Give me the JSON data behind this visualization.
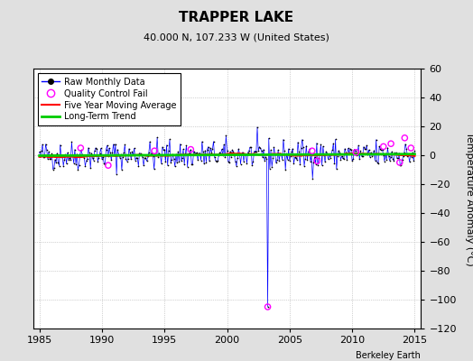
{
  "title": "TRAPPER LAKE",
  "subtitle": "40.000 N, 107.233 W (United States)",
  "ylabel": "Temperature Anomaly (°C)",
  "xlabel_credit": "Berkeley Earth",
  "xlim": [
    1984.5,
    2015.5
  ],
  "ylim": [
    -120,
    60
  ],
  "yticks": [
    -120,
    -100,
    -80,
    -60,
    -40,
    -20,
    0,
    20,
    40,
    60
  ],
  "xticks": [
    1985,
    1990,
    1995,
    2000,
    2005,
    2010,
    2015
  ],
  "bg_color": "#e0e0e0",
  "plot_bg_color": "#ffffff",
  "raw_line_color": "#0000ff",
  "raw_marker_color": "#000000",
  "qc_fail_color": "#ff00ff",
  "moving_avg_color": "#ff0000",
  "trend_color": "#00cc00",
  "outlier_year": 2003.25,
  "outlier_value": -105,
  "seed": 42,
  "start_year": 1985.0,
  "end_year": 2015.0,
  "n_months": 361,
  "qc_fail_years": [
    1988.3,
    1990.5,
    1994.2,
    1997.1,
    2003.25,
    2006.8,
    2007.2,
    2010.3,
    2012.5,
    2013.1,
    2013.8,
    2014.2,
    2014.7
  ],
  "qc_fail_values": [
    5,
    -7,
    3,
    4,
    -105,
    3,
    -4,
    2,
    6,
    8,
    -5,
    12,
    5
  ]
}
